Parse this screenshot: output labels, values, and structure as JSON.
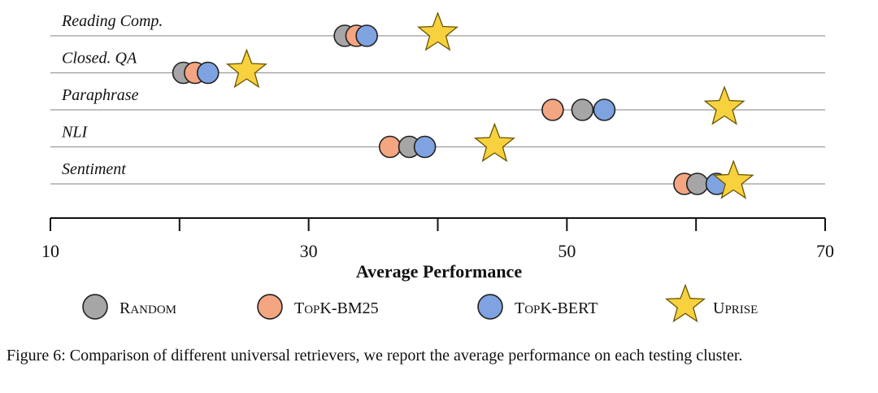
{
  "chart_data": {
    "type": "scatter",
    "xlabel": "Average Performance",
    "xlim": [
      10,
      70
    ],
    "xticks": [
      10,
      30,
      50,
      70
    ],
    "categories": [
      "Reading Comp.",
      "Closed. QA",
      "Paraphrase",
      "NLI",
      "Sentiment"
    ],
    "series": [
      {
        "name": "Random",
        "marker": "circle",
        "color": "#a6a6a6",
        "values": [
          32.8,
          20.3,
          51.2,
          37.8,
          60.1
        ]
      },
      {
        "name": "TopK-BM25",
        "marker": "circle",
        "color": "#f4a582",
        "values": [
          33.7,
          21.2,
          48.9,
          36.3,
          59.1
        ]
      },
      {
        "name": "TopK-BERT",
        "marker": "circle",
        "color": "#7ea3e0",
        "values": [
          34.5,
          22.2,
          52.9,
          39.0,
          61.6
        ]
      },
      {
        "name": "Uprise",
        "marker": "star",
        "color": "#f7d23e",
        "values": [
          40.0,
          25.2,
          62.2,
          44.4,
          62.9
        ]
      }
    ],
    "legend": {
      "placement": "bottom",
      "items": [
        {
          "first": "R",
          "rest": "ANDOM"
        },
        {
          "first": "T",
          "mid": "OP",
          "rest": "K-BM25"
        },
        {
          "first": "T",
          "mid": "OP",
          "rest": "K-BERT"
        },
        {
          "first": "U",
          "rest": "PRISE"
        }
      ]
    }
  },
  "caption": "Figure 6: Comparison of different universal retrievers, we report the average performance on each testing cluster."
}
